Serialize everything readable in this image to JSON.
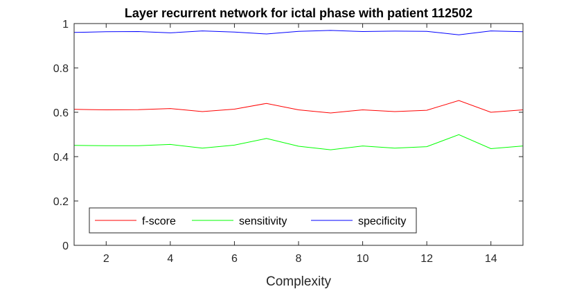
{
  "chart_data": {
    "type": "line",
    "title": "Layer recurrent network for ictal phase with patient 112502",
    "xlabel": "Complexity",
    "ylabel": "",
    "xlim": [
      1,
      15
    ],
    "ylim": [
      0,
      1
    ],
    "xticks": [
      2,
      4,
      6,
      8,
      10,
      12,
      14
    ],
    "yticks": [
      0,
      0.2,
      0.4,
      0.6,
      0.8,
      1
    ],
    "ytick_labels": [
      "0",
      "0.2",
      "0.4",
      "0.6",
      "0.8",
      "1"
    ],
    "grid": false,
    "legend_position": "bottom-left",
    "x": [
      1,
      2,
      3,
      4,
      5,
      6,
      7,
      8,
      9,
      10,
      11,
      12,
      13,
      14,
      15
    ],
    "series": [
      {
        "name": "f-score",
        "color": "#ff0000",
        "values": [
          0.613,
          0.611,
          0.612,
          0.617,
          0.603,
          0.614,
          0.64,
          0.611,
          0.597,
          0.611,
          0.603,
          0.609,
          0.653,
          0.6,
          0.611
        ]
      },
      {
        "name": "sensitivity",
        "color": "#00ff00",
        "values": [
          0.451,
          0.449,
          0.449,
          0.455,
          0.438,
          0.452,
          0.482,
          0.447,
          0.431,
          0.448,
          0.438,
          0.445,
          0.499,
          0.436,
          0.448
        ]
      },
      {
        "name": "specificity",
        "color": "#0000ff",
        "values": [
          0.96,
          0.963,
          0.964,
          0.958,
          0.967,
          0.962,
          0.953,
          0.965,
          0.969,
          0.964,
          0.966,
          0.965,
          0.949,
          0.967,
          0.963
        ]
      }
    ]
  }
}
